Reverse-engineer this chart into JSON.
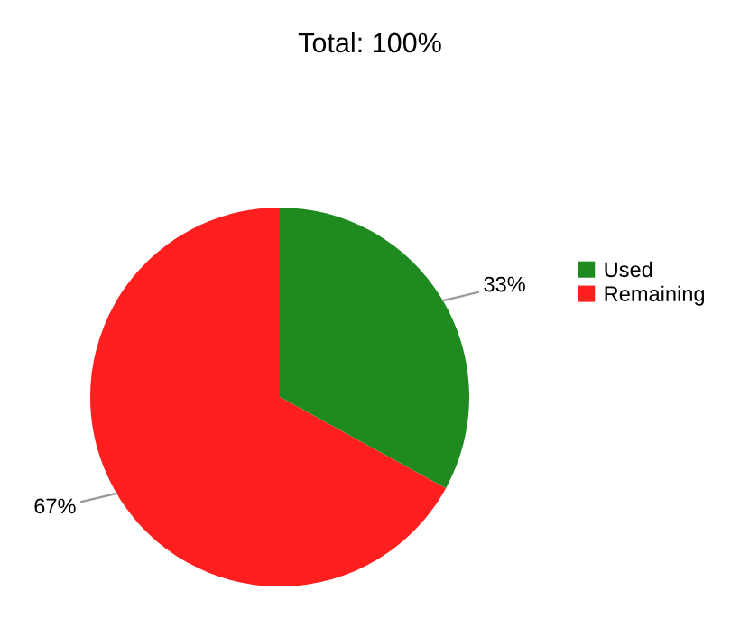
{
  "chart_data": {
    "type": "pie",
    "title": "Total: 100%",
    "categories": [
      "Used",
      "Remaining"
    ],
    "values": [
      33,
      67
    ],
    "colors": [
      "#1f8a1f",
      "#ff1f1f"
    ],
    "value_labels": [
      "33%",
      "67%"
    ],
    "legend": "right"
  }
}
